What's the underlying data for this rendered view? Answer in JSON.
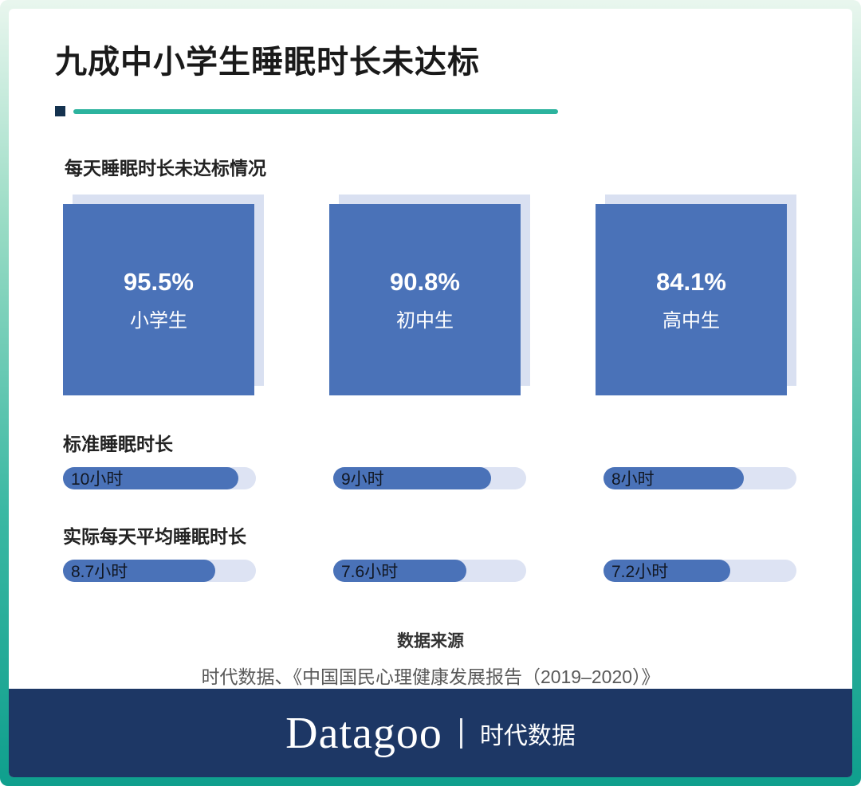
{
  "title": "九成中小学生睡眠时长未达标",
  "chart_data": {
    "type": "bar",
    "title": "九成中小学生睡眠时长未达标",
    "section_label": "每天睡眠时长未达标情况",
    "categories": [
      "小学生",
      "初中生",
      "高中生"
    ],
    "series": [
      {
        "name": "每天睡眠时长未达标情况",
        "values": [
          95.5,
          90.8,
          84.1
        ]
      },
      {
        "name": "标准睡眠时长",
        "values": [
          10,
          9,
          8
        ]
      },
      {
        "name": "实际每天平均睡眠时长",
        "values": [
          8.7,
          7.6,
          7.2
        ]
      }
    ],
    "bar_scale_max": 11,
    "squares": [
      {
        "pct": "95.5%",
        "label": "小学生"
      },
      {
        "pct": "90.8%",
        "label": "初中生"
      },
      {
        "pct": "84.1%",
        "label": "高中生"
      }
    ],
    "standard": {
      "label": "标准睡眠时长",
      "bars": [
        {
          "text": "10小时",
          "value": 10
        },
        {
          "text": "9小时",
          "value": 9
        },
        {
          "text": "8小时",
          "value": 8
        }
      ]
    },
    "actual": {
      "label": "实际每天平均睡眠时长",
      "bars": [
        {
          "text": "8.7小时",
          "value": 8.7
        },
        {
          "text": "7.6小时",
          "value": 7.6
        },
        {
          "text": "7.2小时",
          "value": 7.2
        }
      ]
    }
  },
  "source": {
    "heading": "数据来源",
    "text": "时代数据、《中国国民心理健康发展报告（2019–2020）》"
  },
  "footer": {
    "brand_en": "Datagoo",
    "brand_cn": "时代数据"
  },
  "colors": {
    "primary_blue": "#4a72b8",
    "light_blue": "#d9e0f1",
    "teal": "#2cb39e",
    "navy": "#1d3765"
  }
}
